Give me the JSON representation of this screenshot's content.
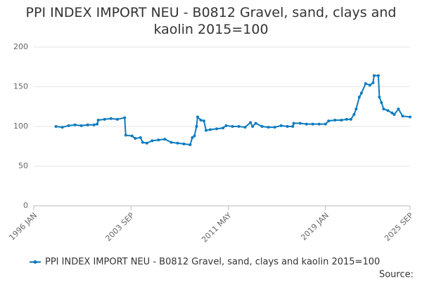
{
  "chart_data": {
    "type": "line",
    "title": "PPI INDEX IMPORT NEU - B0812 Gravel, sand, clays and kaolin 2015=100",
    "source": "Source:",
    "x": [
      "1997 OCT",
      "1998 APR",
      "1998 OCT",
      "1999 APR",
      "1999 OCT",
      "2000 APR",
      "2000 OCT",
      "2001 JAN",
      "2001 FEB",
      "2001 AUG",
      "2002 FEB",
      "2002 AUG",
      "2003 MAR",
      "2003 APR",
      "2003 OCT",
      "2004 JAN",
      "2004 JUN",
      "2004 AUG",
      "2004 DEC",
      "2005 MAY",
      "2005 NOV",
      "2006 MAY",
      "2006 NOV",
      "2007 MAY",
      "2007 NOV",
      "2008 MAY",
      "2008 JUL",
      "2008 SEP",
      "2008 NOV",
      "2008 DEC",
      "2009 MAR",
      "2009 JUN",
      "2009 AUG",
      "2009 DEC",
      "2010 JUN",
      "2010 DEC",
      "2011 MAR",
      "2011 SEP",
      "2012 MAR",
      "2012 SEP",
      "2013 FEB",
      "2013 APR",
      "2013 JUL",
      "2014 JAN",
      "2014 JUL",
      "2015 JAN",
      "2015 JUL",
      "2016 JAN",
      "2016 JUN",
      "2016 JUL",
      "2017 JAN",
      "2017 JUL",
      "2018 JAN",
      "2018 JUL",
      "2019 JAN",
      "2019 APR",
      "2019 OCT",
      "2020 APR",
      "2020 SEP",
      "2021 JAN",
      "2021 APR",
      "2021 JUN",
      "2021 SEP",
      "2021 NOV",
      "2022 MAR",
      "2022 JUL",
      "2022 OCT",
      "2022 NOV",
      "2023 MAR",
      "2023 APR",
      "2023 JUN",
      "2023 AUG",
      "2023 DEC",
      "2024 APR",
      "2024 JUN",
      "2024 OCT",
      "2025 FEB",
      "2025 SEP"
    ],
    "series": [
      {
        "name": "PPI INDEX IMPORT NEU - B0812 Gravel, sand, clays and kaolin 2015=100",
        "color": "#0c7bc0",
        "values": [
          100,
          99,
          101,
          102,
          101,
          102,
          102,
          103,
          108,
          109,
          110,
          109,
          111,
          89,
          88,
          85,
          86,
          80,
          79,
          82,
          83,
          84,
          80,
          79,
          78,
          77,
          86,
          88,
          100,
          112,
          108,
          107,
          95,
          96,
          97,
          98,
          101,
          100,
          100,
          99,
          105,
          100,
          104,
          100,
          99,
          99,
          101,
          100,
          100,
          104,
          104,
          103,
          103,
          103,
          103,
          107,
          108,
          108,
          109,
          109,
          115,
          122,
          137,
          142,
          154,
          152,
          155,
          164,
          164,
          137,
          130,
          122,
          120,
          117,
          115,
          122,
          113,
          112
        ]
      }
    ],
    "xlim": [
      "1996 JAN",
      "2025 SEP"
    ],
    "xticks": [
      "1996 JAN",
      "2003 SEP",
      "2011 MAY",
      "2019 JAN",
      "2025 SEP"
    ],
    "ylim": [
      0,
      200
    ],
    "yticks": [
      0,
      50,
      100,
      150,
      200
    ],
    "grid": true,
    "legend": "bottom"
  }
}
